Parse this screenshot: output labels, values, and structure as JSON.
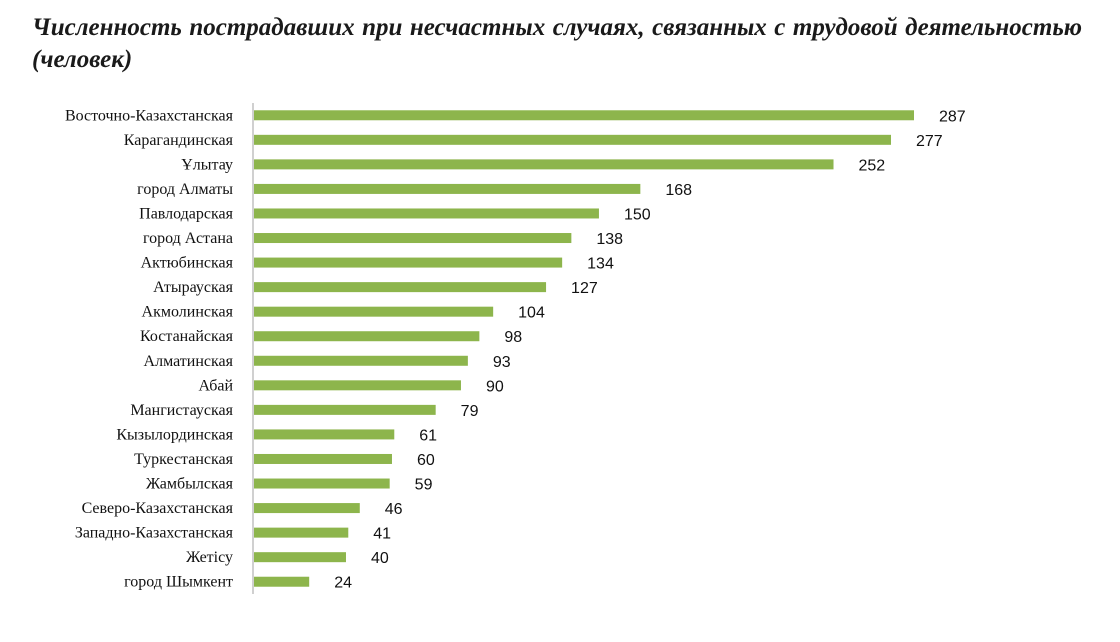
{
  "chart_data": {
    "type": "bar",
    "orientation": "horizontal",
    "title": "Численность пострадавших при несчастных случаях, связанных с трудовой деятельностью (человек)",
    "categories": [
      "Восточно-Казахстанская",
      "Карагандинская",
      "Ұлытау",
      "город Алматы",
      "Павлодарская",
      "город Астана",
      "Актюбинская",
      "Атырауская",
      "Акмолинская",
      "Костанайская",
      "Алматинская",
      "Абай",
      "Мангистауская",
      "Кызылординская",
      "Туркестанская",
      "Жамбылская",
      "Северо-Казахстанская",
      "Западно-Казахстанская",
      "Жетісу",
      "город Шымкент"
    ],
    "values": [
      287,
      277,
      252,
      168,
      150,
      138,
      134,
      127,
      104,
      98,
      93,
      90,
      79,
      61,
      60,
      59,
      46,
      41,
      40,
      24
    ],
    "xlim": [
      0,
      300
    ],
    "grid": false,
    "legend": "none",
    "bar_color": "#8db54c"
  }
}
